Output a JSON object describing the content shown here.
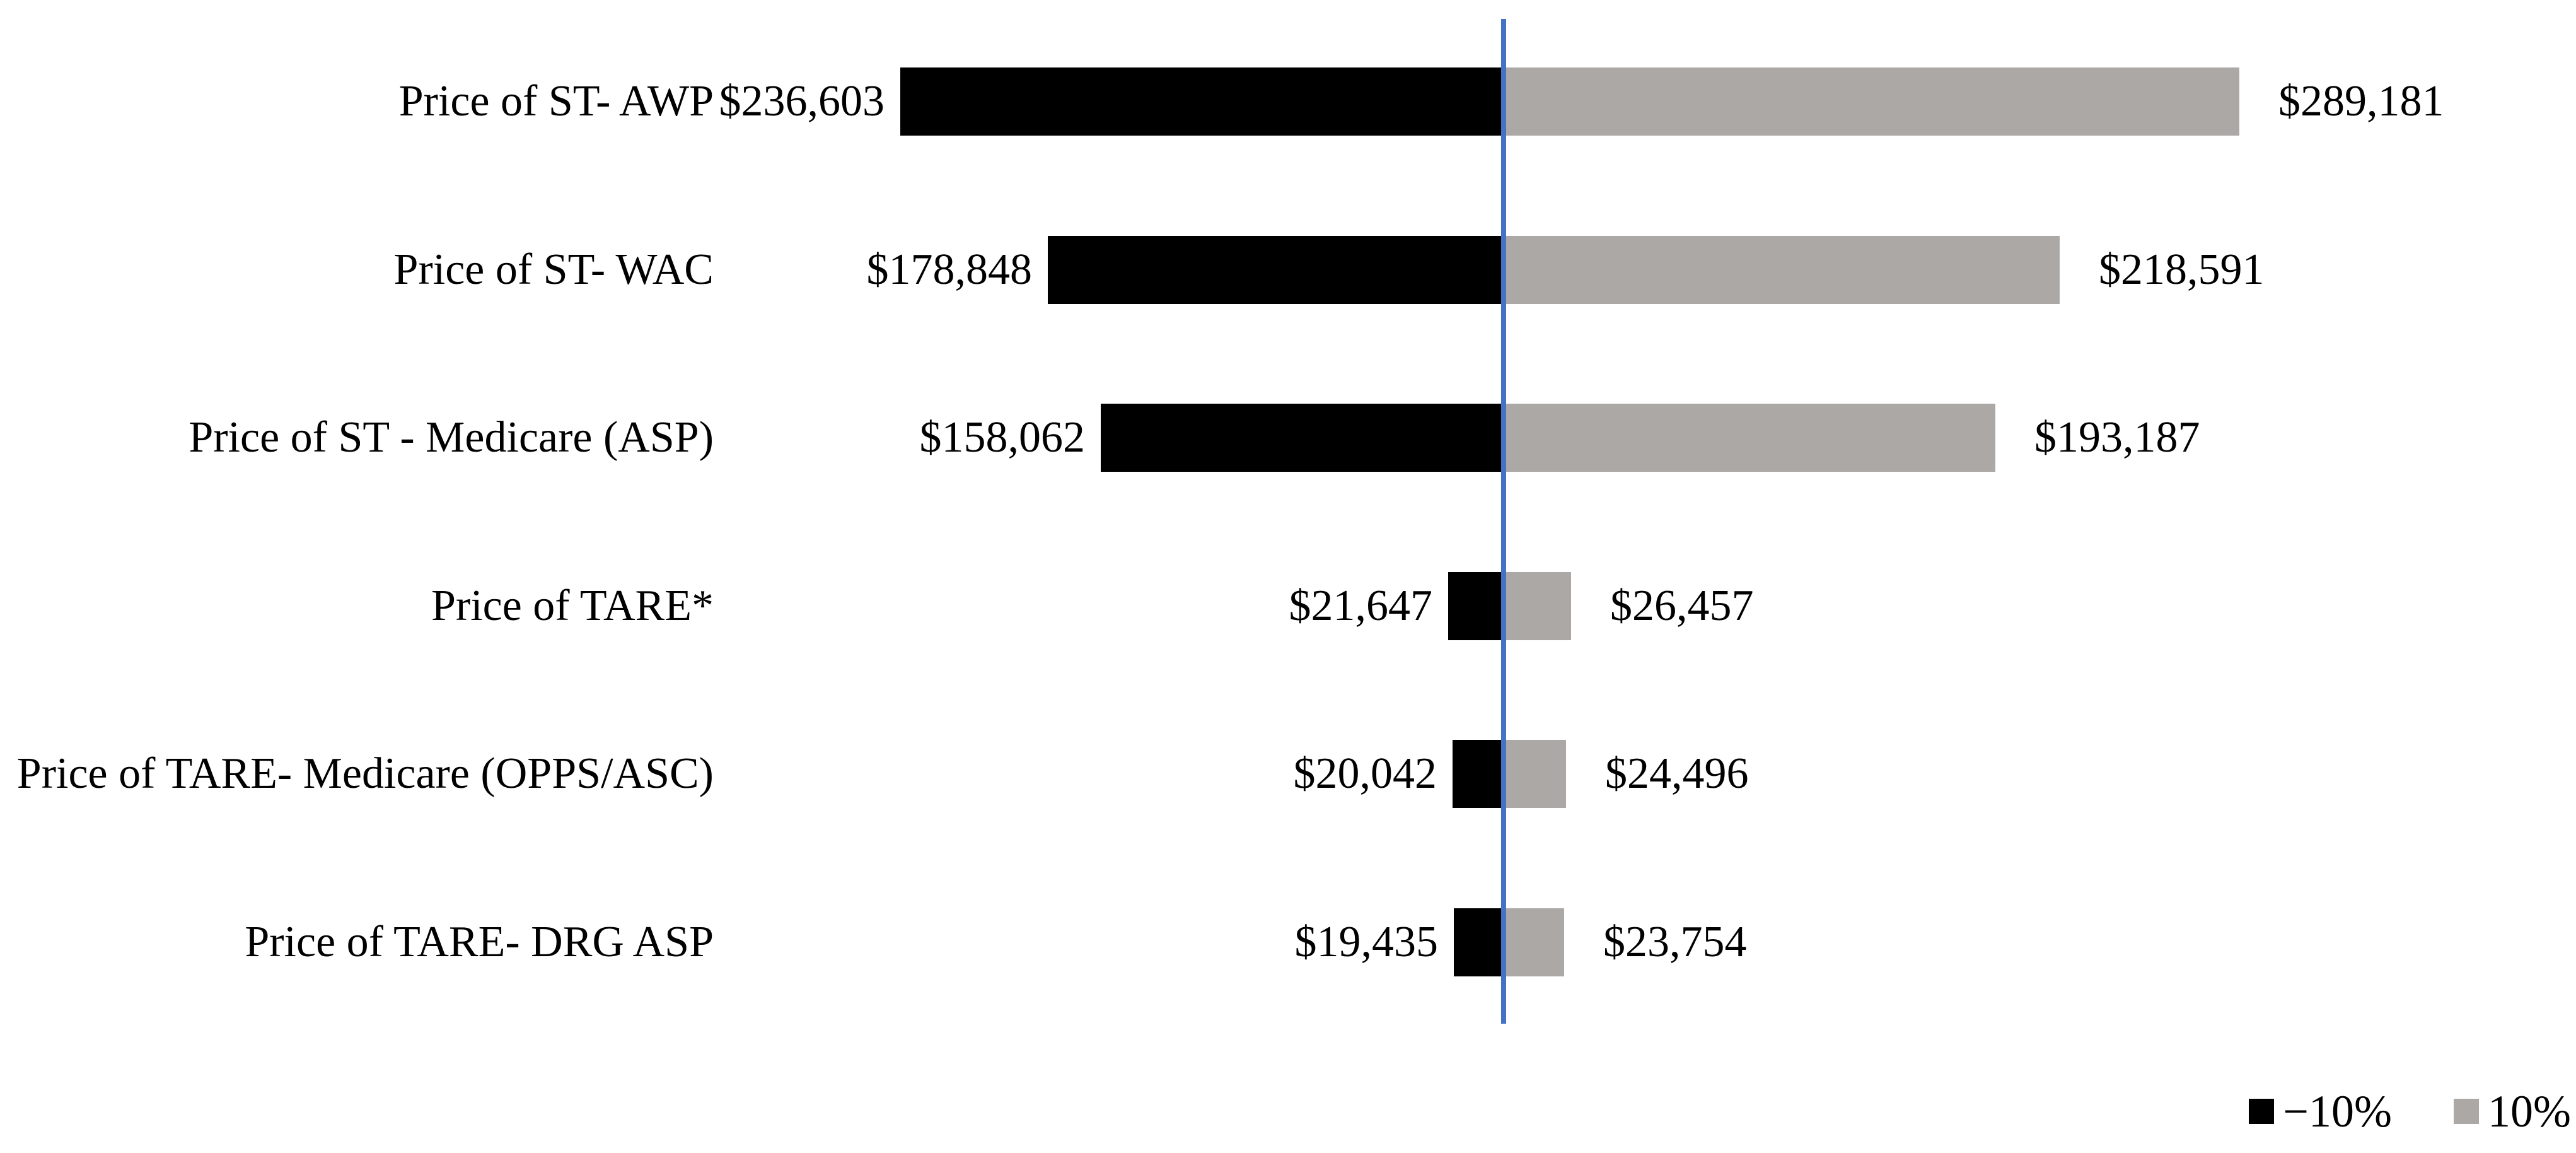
{
  "chart_data": {
    "type": "bar",
    "subtype": "tornado-sensitivity",
    "orientation": "horizontal",
    "title": "",
    "xlabel": "",
    "ylabel": "",
    "grid": false,
    "categories": [
      "Price of ST- AWP",
      "Price of ST- WAC",
      "Price of ST - Medicare (ASP)",
      "Price of TARE*",
      "Price of TARE- Medicare (OPPS/ASC)",
      "Price of TARE- DRG ASP"
    ],
    "series": [
      {
        "name": "−10%",
        "color": "#000000",
        "side": "left-of-baseline",
        "values": [
          236603,
          178848,
          158062,
          21647,
          20042,
          19435
        ],
        "value_labels": [
          "$236,603",
          "$178,848",
          "$158,062",
          "$21,647",
          "$20,042",
          "$19,435"
        ]
      },
      {
        "name": "10%",
        "color": "#ABA8A6",
        "side": "right-of-baseline",
        "values": [
          289181,
          218591,
          193187,
          26457,
          24496,
          23754
        ],
        "value_labels": [
          "$289,181",
          "$218,591",
          "$193,187",
          "$26,457",
          "$24,496",
          "$23,754"
        ]
      }
    ],
    "baseline": {
      "description": "vertical base-case reference line",
      "color": "#4472C4"
    },
    "legend": {
      "position": "bottom-right",
      "items": [
        {
          "label": "−10%",
          "swatch_color": "#000000"
        },
        {
          "label": "10%",
          "swatch_color": "#ABA8A6"
        }
      ]
    }
  }
}
